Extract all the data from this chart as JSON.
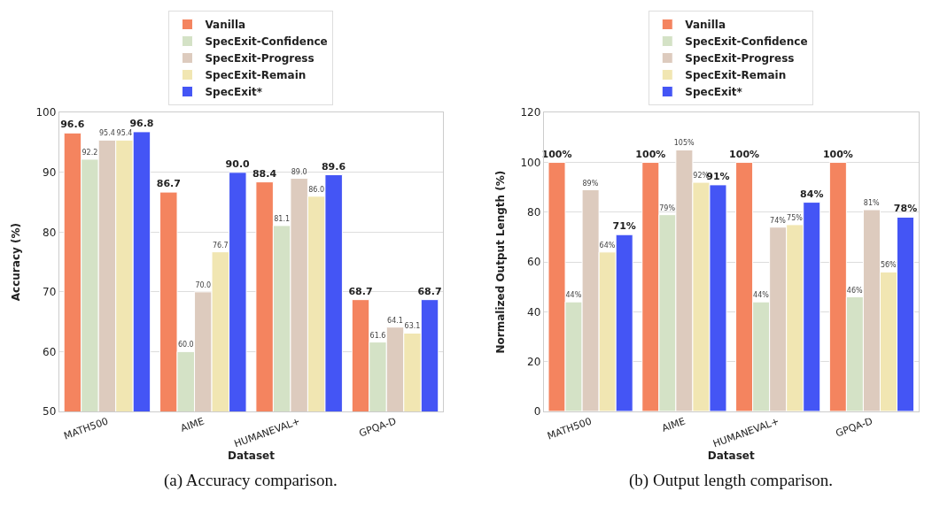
{
  "chart_data": [
    {
      "type": "bar",
      "categories": [
        "MATH500",
        "AIME",
        "HUMANEVAL+",
        "GPQA-D"
      ],
      "xlabel": "Dataset",
      "ylabel": "Accuracy (%)",
      "ylim": [
        50,
        100
      ],
      "yticks": [
        50,
        60,
        70,
        80,
        90,
        100
      ],
      "grid": "y",
      "legend": "top",
      "annotations": [
        "(a) Accuracy comparison."
      ],
      "series": [
        {
          "name": "Vanilla",
          "color": "#f4845f",
          "values": [
            96.6,
            86.7,
            88.4,
            68.7
          ],
          "value_labels": [
            "96.6",
            "86.7",
            "88.4",
            "68.7"
          ]
        },
        {
          "name": "SpecExit-Confidence",
          "color": "#d4e2c6",
          "values": [
            92.2,
            60.0,
            81.1,
            61.6
          ],
          "value_labels": [
            "92.2",
            "60.0",
            "81.1",
            "61.6"
          ]
        },
        {
          "name": "SpecExit-Progress",
          "color": "#ddcbbe",
          "values": [
            95.4,
            70.0,
            89.0,
            64.1
          ],
          "value_labels": [
            "95.4",
            "70.0",
            "89.0",
            "64.1"
          ]
        },
        {
          "name": "SpecExit-Remain",
          "color": "#f1e6b2",
          "values": [
            95.4,
            76.7,
            86.0,
            63.1
          ],
          "value_labels": [
            "95.4",
            "76.7",
            "86.0",
            "63.1"
          ]
        },
        {
          "name": "SpecExit*",
          "color": "#4455f5",
          "values": [
            96.8,
            90.0,
            89.6,
            68.7
          ],
          "value_labels": [
            "96.8",
            "90.0",
            "89.6",
            "68.7"
          ]
        }
      ]
    },
    {
      "type": "bar",
      "categories": [
        "MATH500",
        "AIME",
        "HUMANEVAL+",
        "GPQA-D"
      ],
      "xlabel": "Dataset",
      "ylabel": "Normalized Output Length (%)",
      "ylim": [
        0,
        120
      ],
      "yticks": [
        0,
        20,
        40,
        60,
        80,
        100,
        120
      ],
      "grid": "y",
      "legend": "top",
      "annotations": [
        "(b) Output length comparison."
      ],
      "series": [
        {
          "name": "Vanilla",
          "color": "#f4845f",
          "values": [
            100,
            100,
            100,
            100
          ],
          "value_labels": [
            "100%",
            "100%",
            "100%",
            "100%"
          ]
        },
        {
          "name": "SpecExit-Confidence",
          "color": "#d4e2c6",
          "values": [
            44,
            79,
            44,
            46
          ],
          "value_labels": [
            "44%",
            "79%",
            "44%",
            "46%"
          ]
        },
        {
          "name": "SpecExit-Progress",
          "color": "#ddcbbe",
          "values": [
            89,
            105,
            74,
            81
          ],
          "value_labels": [
            "89%",
            "105%",
            "74%",
            "81%"
          ]
        },
        {
          "name": "SpecExit-Remain",
          "color": "#f1e6b2",
          "values": [
            64,
            92,
            75,
            56
          ],
          "value_labels": [
            "64%",
            "92%",
            "75%",
            "56%"
          ]
        },
        {
          "name": "SpecExit*",
          "color": "#4455f5",
          "values": [
            71,
            91,
            84,
            78
          ],
          "value_labels": [
            "71%",
            "91%",
            "84%",
            "78%"
          ]
        }
      ]
    }
  ]
}
